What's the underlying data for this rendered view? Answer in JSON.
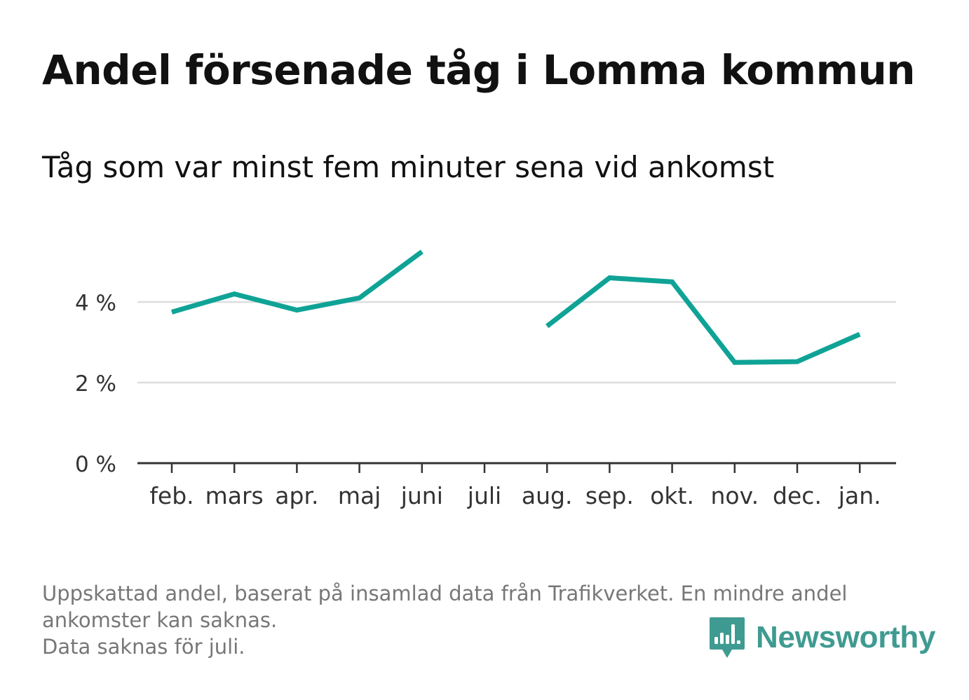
{
  "header": {
    "title": "Andel försenade tåg i Lomma kommun",
    "subtitle": "Tåg som var minst fem minuter sena vid ankomst"
  },
  "chart_data": {
    "type": "line",
    "title": "Andel försenade tåg i Lomma kommun",
    "subtitle": "Tåg som var minst fem minuter sena vid ankomst",
    "xlabel": "",
    "ylabel": "",
    "categories": [
      "feb.",
      "mars",
      "apr.",
      "maj",
      "juni",
      "juli",
      "aug.",
      "sep.",
      "okt.",
      "nov.",
      "dec.",
      "jan."
    ],
    "series": [
      {
        "values": [
          3.75,
          4.2,
          3.8,
          4.1,
          5.25,
          null,
          3.4,
          4.6,
          4.5,
          2.5,
          2.52,
          3.2
        ]
      }
    ],
    "y_ticks": [
      0,
      2,
      4
    ],
    "y_tick_labels": [
      "0 %",
      "2 %",
      "4 %"
    ],
    "ylim": [
      0,
      5.6
    ],
    "grid": "horizontal",
    "line_color": "#0fa396"
  },
  "footer": {
    "note_line1": "Uppskattad andel, baserat på insamlad data från Trafikverket. En mindre andel",
    "note_line2": "ankomster kan saknas.",
    "note_line3": "Data saknas för juli.",
    "logo_text": "Newsworthy",
    "logo_icon": "bar-chart-speech-bubble-icon",
    "logo_color": "#3f9b91"
  }
}
